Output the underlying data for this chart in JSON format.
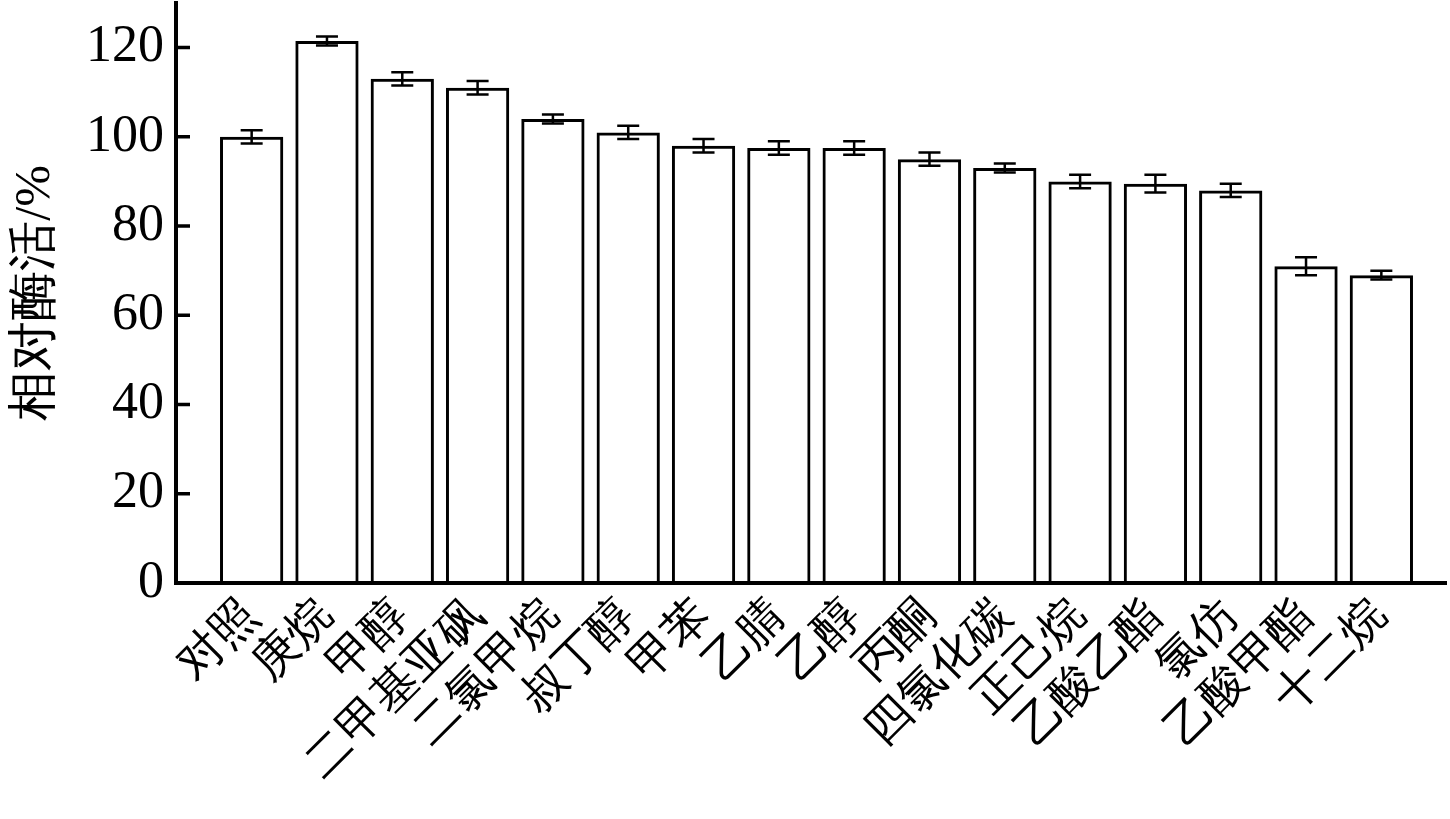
{
  "chart_data": {
    "type": "bar",
    "ylabel": "相对酶活/%",
    "categories": [
      "对照",
      "庚烷",
      "甲醇",
      "二甲基亚砜",
      "二氯甲烷",
      "叔丁醇",
      "甲苯",
      "乙腈",
      "乙醇",
      "丙酮",
      "四氯化碳",
      "正己烷",
      "乙酸乙酯",
      "氯仿",
      "乙酸甲酯",
      "十二烷"
    ],
    "values": [
      100,
      121.5,
      113,
      111,
      104,
      101,
      98,
      97.5,
      97.5,
      95,
      93,
      90,
      89.5,
      88,
      71,
      69
    ],
    "errors": [
      1.5,
      1,
      1.5,
      1.5,
      1,
      1.5,
      1.5,
      1.5,
      1.5,
      1.5,
      1,
      1.5,
      2,
      1.5,
      2,
      1
    ],
    "color": "#000000",
    "ylim": [
      0,
      130
    ],
    "yticks": [
      0,
      20,
      40,
      60,
      80,
      100,
      120
    ]
  }
}
